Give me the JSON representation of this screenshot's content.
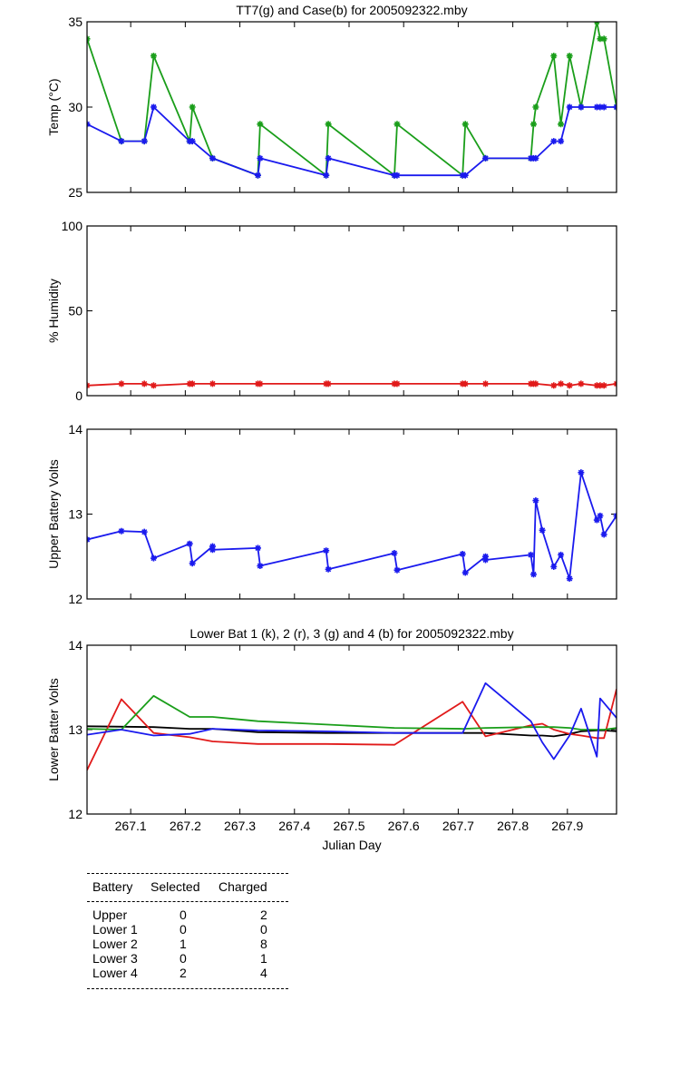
{
  "chart_data": [
    {
      "type": "line",
      "title": "TT7(g) and Case(b) for 2005092322.mby",
      "xlabel": "",
      "ylabel": "Temp  (°C)",
      "xlim": [
        267.02,
        267.99
      ],
      "ylim": [
        25,
        35
      ],
      "yticks": [
        "25",
        "30",
        "35"
      ],
      "series": [
        {
          "name": "TT7",
          "color": "#1a9e1a",
          "markers": true,
          "x": [
            267.02,
            267.083,
            267.125,
            267.142,
            267.208,
            267.213,
            267.25,
            267.333,
            267.337,
            267.458,
            267.462,
            267.583,
            267.588,
            267.708,
            267.713,
            267.75,
            267.833,
            267.838,
            267.842,
            267.875,
            267.888,
            267.904,
            267.925,
            267.954,
            267.96,
            267.967,
            267.99
          ],
          "y": [
            34,
            28,
            28,
            33,
            28,
            30,
            27,
            26,
            29,
            26,
            29,
            26,
            29,
            26,
            29,
            27,
            27,
            29,
            30,
            33,
            29,
            33,
            30,
            35,
            34,
            34,
            30
          ]
        },
        {
          "name": "Case",
          "color": "#1a1aee",
          "markers": true,
          "x": [
            267.02,
            267.083,
            267.125,
            267.142,
            267.208,
            267.213,
            267.25,
            267.333,
            267.337,
            267.458,
            267.462,
            267.583,
            267.588,
            267.708,
            267.713,
            267.75,
            267.833,
            267.838,
            267.842,
            267.875,
            267.888,
            267.904,
            267.925,
            267.954,
            267.96,
            267.967,
            267.99
          ],
          "y": [
            29,
            28,
            28,
            30,
            28,
            28,
            27,
            26,
            27,
            26,
            27,
            26,
            26,
            26,
            26,
            27,
            27,
            27,
            27,
            28,
            28,
            30,
            30,
            30,
            30,
            30,
            30
          ]
        }
      ]
    },
    {
      "type": "line",
      "title": "",
      "xlabel": "",
      "ylabel": "% Humidity",
      "xlim": [
        267.02,
        267.99
      ],
      "ylim": [
        0,
        100
      ],
      "yticks": [
        "0",
        "50",
        "100"
      ],
      "series": [
        {
          "name": "Humidity",
          "color": "#e11a1a",
          "markers": true,
          "x": [
            267.02,
            267.083,
            267.125,
            267.142,
            267.208,
            267.213,
            267.25,
            267.333,
            267.337,
            267.458,
            267.462,
            267.583,
            267.588,
            267.708,
            267.713,
            267.75,
            267.833,
            267.838,
            267.842,
            267.875,
            267.888,
            267.904,
            267.925,
            267.954,
            267.96,
            267.967,
            267.99
          ],
          "y": [
            6,
            7,
            7,
            6,
            7,
            7,
            7,
            7,
            7,
            7,
            7,
            7,
            7,
            7,
            7,
            7,
            7,
            7,
            7,
            6,
            7,
            6,
            7,
            6,
            6,
            6,
            7
          ]
        }
      ]
    },
    {
      "type": "line",
      "title": "",
      "xlabel": "",
      "ylabel": "Upper Battery Volts",
      "xlim": [
        267.02,
        267.99
      ],
      "ylim": [
        12,
        14
      ],
      "yticks": [
        "12",
        "13",
        "14"
      ],
      "series": [
        {
          "name": "Upper battery",
          "color": "#1a1aee",
          "markers": true,
          "x": [
            267.02,
            267.083,
            267.125,
            267.142,
            267.208,
            267.213,
            267.25,
            267.25,
            267.333,
            267.337,
            267.458,
            267.462,
            267.583,
            267.588,
            267.708,
            267.713,
            267.75,
            267.75,
            267.833,
            267.838,
            267.842,
            267.854,
            267.875,
            267.888,
            267.904,
            267.925,
            267.954,
            267.96,
            267.967,
            267.99
          ],
          "y": [
            12.7,
            12.8,
            12.79,
            12.48,
            12.65,
            12.42,
            12.62,
            12.58,
            12.6,
            12.39,
            12.57,
            12.35,
            12.54,
            12.34,
            12.53,
            12.31,
            12.5,
            12.46,
            12.52,
            12.29,
            13.16,
            12.81,
            12.38,
            12.52,
            12.24,
            13.49,
            12.93,
            12.98,
            12.76,
            12.98
          ]
        }
      ]
    },
    {
      "type": "line",
      "title": "Lower Bat 1 (k), 2 (r), 3 (g) and 4 (b) for 2005092322.mby",
      "xlabel": "Julian Day",
      "ylabel": "Lower Batter Volts",
      "xlim": [
        267.02,
        267.99
      ],
      "ylim": [
        12,
        14
      ],
      "yticks": [
        "12",
        "13",
        "14"
      ],
      "xticks": [
        "267.1",
        "267.2",
        "267.3",
        "267.4",
        "267.5",
        "267.6",
        "267.7",
        "267.8",
        "267.9"
      ],
      "series": [
        {
          "name": "Lower 1",
          "color": "#000000",
          "markers": false,
          "x": [
            267.02,
            267.142,
            267.208,
            267.25,
            267.333,
            267.458,
            267.583,
            267.708,
            267.75,
            267.833,
            267.854,
            267.875,
            267.904,
            267.925,
            267.954,
            267.967,
            267.99
          ],
          "y": [
            13.04,
            13.03,
            13.01,
            13.01,
            12.97,
            12.96,
            12.96,
            12.96,
            12.96,
            12.93,
            12.93,
            12.92,
            12.95,
            12.98,
            12.99,
            12.99,
            12.98
          ]
        },
        {
          "name": "Lower 2",
          "color": "#e11a1a",
          "markers": false,
          "x": [
            267.02,
            267.083,
            267.142,
            267.208,
            267.25,
            267.333,
            267.458,
            267.583,
            267.708,
            267.75,
            267.833,
            267.854,
            267.875,
            267.904,
            267.925,
            267.954,
            267.967,
            267.99
          ],
          "y": [
            12.52,
            13.36,
            12.96,
            12.91,
            12.86,
            12.83,
            12.83,
            12.82,
            13.33,
            12.92,
            13.05,
            13.07,
            13.0,
            12.95,
            12.93,
            12.9,
            12.9,
            13.48
          ]
        },
        {
          "name": "Lower 3",
          "color": "#1a9e1a",
          "markers": false,
          "x": [
            267.02,
            267.083,
            267.142,
            267.208,
            267.25,
            267.333,
            267.458,
            267.583,
            267.708,
            267.75,
            267.833,
            267.875,
            267.904,
            267.925,
            267.954,
            267.967,
            267.99
          ],
          "y": [
            13.01,
            13.0,
            13.4,
            13.15,
            13.15,
            13.1,
            13.06,
            13.02,
            13.01,
            13.02,
            13.03,
            13.03,
            13.02,
            13.0,
            13.0,
            13.0,
            13.02
          ]
        },
        {
          "name": "Lower 4",
          "color": "#1a1aee",
          "markers": false,
          "x": [
            267.02,
            267.083,
            267.142,
            267.208,
            267.25,
            267.333,
            267.458,
            267.583,
            267.708,
            267.75,
            267.833,
            267.854,
            267.875,
            267.904,
            267.925,
            267.954,
            267.96,
            267.99
          ],
          "y": [
            12.94,
            13.0,
            12.93,
            12.95,
            13.01,
            12.99,
            12.98,
            12.96,
            12.96,
            13.55,
            13.1,
            12.85,
            12.65,
            12.93,
            13.25,
            12.68,
            13.37,
            13.14
          ]
        }
      ]
    }
  ],
  "battery_table": {
    "headers": [
      "Battery",
      "Selected",
      "Charged"
    ],
    "rows": [
      {
        "battery": "Upper",
        "selected": "0",
        "charged": "2"
      },
      {
        "battery": "Lower 1",
        "selected": "0",
        "charged": "0"
      },
      {
        "battery": "Lower 2",
        "selected": "1",
        "charged": "8"
      },
      {
        "battery": "Lower 3",
        "selected": "0",
        "charged": "1"
      },
      {
        "battery": "Lower 4",
        "selected": "2",
        "charged": "4"
      }
    ]
  }
}
